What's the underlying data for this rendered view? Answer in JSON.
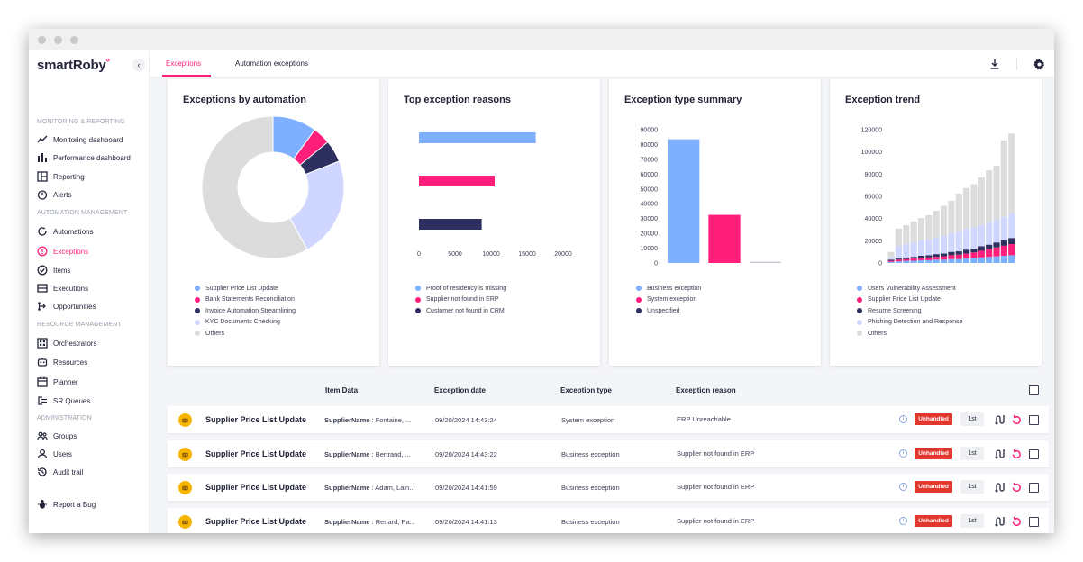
{
  "sidebar": {
    "logo_main": "smartRoby",
    "sections": {
      "monitoring": "MONITORING & REPORTING",
      "automation": "AUTOMATION MANAGEMENT",
      "resource": "RESOURCE MANAGEMENT",
      "administration": "ADMINISTRATION"
    },
    "items": [
      {
        "label": "Monitoring dashboard",
        "icon": "trend-line-icon"
      },
      {
        "label": "Performance dashboard",
        "icon": "bar-chart-icon"
      },
      {
        "label": "Reporting",
        "icon": "layout-icon"
      },
      {
        "label": "Alerts",
        "icon": "alert-clock-icon"
      },
      {
        "label": "Automations",
        "icon": "cycle-icon"
      },
      {
        "label": "Exceptions",
        "icon": "exclamation-icon"
      },
      {
        "label": "Items",
        "icon": "check-circle-icon"
      },
      {
        "label": "Executions",
        "icon": "list-box-icon"
      },
      {
        "label": "Opportunities",
        "icon": "branch-icon"
      },
      {
        "label": "Orchestrators",
        "icon": "grid-icon"
      },
      {
        "label": "Resources",
        "icon": "robot-icon"
      },
      {
        "label": "Planner",
        "icon": "calendar-icon"
      },
      {
        "label": "SR Queues",
        "icon": "queue-icon"
      },
      {
        "label": "Groups",
        "icon": "group-icon"
      },
      {
        "label": "Users",
        "icon": "user-icon"
      },
      {
        "label": "Audit trail",
        "icon": "history-icon"
      },
      {
        "label": "Report a Bug",
        "icon": "bug-icon"
      }
    ]
  },
  "topbar": {
    "tabs": [
      "Exceptions",
      "Automation exceptions"
    ],
    "active_tab": "Exceptions"
  },
  "colors": {
    "accent": "#ff1f7a",
    "blue": "#7eb0ff",
    "navy": "#2d2f5e",
    "lavender": "#cfd6ff",
    "grey": "#dcdcdc",
    "badge_red": "#e2372f"
  },
  "cards": [
    {
      "title": "Exceptions by automation"
    },
    {
      "title": "Top exception reasons"
    },
    {
      "title": "Exception type summary"
    },
    {
      "title": "Exception trend"
    }
  ],
  "chart_data": [
    {
      "type": "pie",
      "title": "Exceptions by automation",
      "categories": [
        "Supplier Price List Update",
        "Bank Statements Reconciliation",
        "Invoice Automation Streamlining",
        "KYC Documents Checking",
        "Others"
      ],
      "values": [
        10,
        4,
        5,
        23,
        58
      ],
      "colors": [
        "#7eb0ff",
        "#ff1f7a",
        "#2d2f5e",
        "#cfd6ff",
        "#dcdcdc"
      ],
      "legend": "bottom"
    },
    {
      "type": "bar",
      "orientation": "horizontal",
      "title": "Top exception reasons",
      "categories": [
        "Proof of residency is missing",
        "Supplier not found in ERP",
        "Customer not found in CRM"
      ],
      "values": [
        16200,
        10500,
        8700
      ],
      "colors": [
        "#7eb0ff",
        "#ff1f7a",
        "#2d2f5e"
      ],
      "xlim": [
        0,
        20000
      ],
      "xticks": [
        "0",
        "5000",
        "10000",
        "15000",
        "20000"
      ],
      "legend": "bottom"
    },
    {
      "type": "bar",
      "title": "Exception type summary",
      "categories": [
        "Business exception",
        "System exception",
        "Unspecified"
      ],
      "values": [
        83500,
        32500,
        600
      ],
      "colors": [
        "#7eb0ff",
        "#ff1f7a",
        "#2d2f5e"
      ],
      "ylim": [
        0,
        90000
      ],
      "yticks": [
        "0",
        "10000",
        "20000",
        "30000",
        "40000",
        "50000",
        "60000",
        "70000",
        "80000",
        "90000"
      ],
      "legend": "bottom"
    },
    {
      "type": "bar",
      "stacked": true,
      "title": "Exception trend",
      "ylim": [
        0,
        120000
      ],
      "yticks": [
        "0",
        "20000",
        "40000",
        "60000",
        "80000",
        "100000",
        "120000"
      ],
      "series": [
        {
          "name": "Users Vulnerability Assessment",
          "color": "#7eb0ff",
          "values": [
            1000,
            1500,
            2000,
            2000,
            2500,
            2500,
            3000,
            3000,
            3500,
            3500,
            4000,
            4500,
            5000,
            5500,
            6000,
            6500,
            7000
          ]
        },
        {
          "name": "Supplier Price List Update",
          "color": "#ff1f7a",
          "values": [
            1000,
            1500,
            1500,
            2000,
            2000,
            2500,
            2500,
            3000,
            3500,
            4000,
            4500,
            5000,
            6000,
            7000,
            8000,
            9000,
            10000
          ]
        },
        {
          "name": "Resume Screening",
          "color": "#2d2f5e",
          "values": [
            1000,
            1000,
            1500,
            1500,
            2000,
            2000,
            2500,
            2500,
            3000,
            3000,
            3500,
            3500,
            4000,
            4000,
            4500,
            5000,
            5500
          ]
        },
        {
          "name": "Phishing Detection and Response",
          "color": "#cfd6ff",
          "values": [
            2000,
            11000,
            12000,
            13000,
            14000,
            14000,
            15000,
            16000,
            17000,
            18000,
            18500,
            19000,
            19000,
            20000,
            20000,
            21000,
            22000
          ]
        },
        {
          "name": "Others",
          "color": "#dcdcdc",
          "values": [
            5000,
            16000,
            17000,
            19000,
            20000,
            22000,
            24000,
            27000,
            29000,
            34000,
            37000,
            39000,
            43000,
            47000,
            49000,
            69000,
            72000
          ]
        }
      ],
      "legend": "bottom"
    }
  ],
  "table": {
    "headers": {
      "item_data": "Item Data",
      "date": "Exception date",
      "type": "Exception type",
      "reason": "Exception reason"
    },
    "rows": [
      {
        "name": "Supplier Price List Update",
        "key": "SupplierName",
        "value": " : Fontaine, ...",
        "date": "09/20/2024 14:43:24",
        "type": "System exception",
        "reason": "ERP Unreachable",
        "status": "Unhandled",
        "level": "1st"
      },
      {
        "name": "Supplier Price List Update",
        "key": "SupplierName",
        "value": " : Bertrand, ...",
        "date": "09/20/2024 14:43:22",
        "type": "Business exception",
        "reason": "Supplier not found in ERP",
        "status": "Unhandled",
        "level": "1st"
      },
      {
        "name": "Supplier Price List Update",
        "key": "SupplierName",
        "value": " : Adam, Lain...",
        "date": "09/20/2024 14:41:59",
        "type": "Business exception",
        "reason": "Supplier not found in ERP",
        "status": "Unhandled",
        "level": "1st"
      },
      {
        "name": "Supplier Price List Update",
        "key": "SupplierName",
        "value": " : Renard, Pa...",
        "date": "09/20/2024 14:41:13",
        "type": "Business exception",
        "reason": "Supplier not found in ERP",
        "status": "Unhandled",
        "level": "1st"
      }
    ]
  }
}
